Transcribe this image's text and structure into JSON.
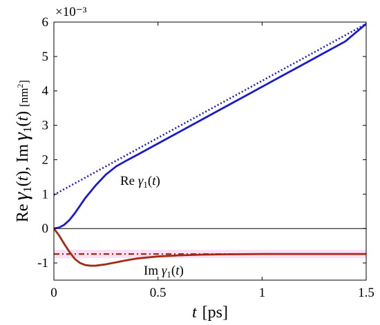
{
  "chart_data": {
    "type": "line",
    "title": "",
    "xlabel": "t  [ps]",
    "ylabel": "Re γ1(t), Im γ1(t) [nm²]",
    "y_exponent": "×10⁻³",
    "xlim": [
      0,
      1.5
    ],
    "ylim": [
      -1.5,
      6
    ],
    "x_ticks": [
      0,
      0.5,
      1,
      1.5
    ],
    "x_tick_labels": [
      "0",
      "0.5",
      "1",
      "1.5"
    ],
    "y_ticks": [
      -1,
      0,
      1,
      2,
      3,
      4,
      5,
      6
    ],
    "y_tick_labels": [
      "-1",
      "0",
      "1",
      "2",
      "3",
      "4",
      "5",
      "6"
    ],
    "grid": false,
    "zero_line": true,
    "annotations": [
      {
        "text": "Re γ1(t)",
        "x": 0.5,
        "y": 1.4
      },
      {
        "text": "Im γ1(t)",
        "x": 0.55,
        "y": -1.2
      }
    ],
    "colors": {
      "re_solid": "#1a1acc",
      "re_asymptote": "#1a1acc",
      "im_solid": "#a32a12",
      "im_asymptote": "#a32a12",
      "im_band": "#f7c6ec"
    },
    "series": [
      {
        "id": "re_gamma",
        "style": "solid",
        "x": [
          0,
          0.025,
          0.05,
          0.075,
          0.1,
          0.125,
          0.15,
          0.2,
          0.25,
          0.3,
          0.35,
          0.4,
          0.5,
          0.6,
          0.7,
          0.8,
          0.9,
          1.0,
          1.1,
          1.2,
          1.3,
          1.4,
          1.5
        ],
        "y": [
          0,
          0.03,
          0.11,
          0.25,
          0.44,
          0.66,
          0.88,
          1.25,
          1.57,
          1.81,
          1.98,
          2.14,
          2.47,
          2.8,
          3.13,
          3.46,
          3.79,
          4.12,
          4.45,
          4.78,
          5.11,
          5.44,
          5.95
        ]
      },
      {
        "id": "re_asymptote",
        "style": "dotted",
        "x": [
          0,
          1.5
        ],
        "y": [
          0.98,
          5.95
        ]
      },
      {
        "id": "im_gamma",
        "style": "solid",
        "x": [
          0,
          0.025,
          0.05,
          0.075,
          0.1,
          0.125,
          0.15,
          0.175,
          0.2,
          0.25,
          0.3,
          0.35,
          0.4,
          0.5,
          0.6,
          0.7,
          0.8,
          1.0,
          1.2,
          1.5
        ],
        "y": [
          0,
          -0.2,
          -0.45,
          -0.68,
          -0.88,
          -1.0,
          -1.06,
          -1.08,
          -1.08,
          -1.04,
          -0.98,
          -0.92,
          -0.87,
          -0.81,
          -0.78,
          -0.76,
          -0.75,
          -0.74,
          -0.74,
          -0.74
        ]
      },
      {
        "id": "im_asymptote",
        "style": "dashdot",
        "x": [
          0,
          1.5
        ],
        "y": [
          -0.74,
          -0.74
        ]
      }
    ]
  }
}
